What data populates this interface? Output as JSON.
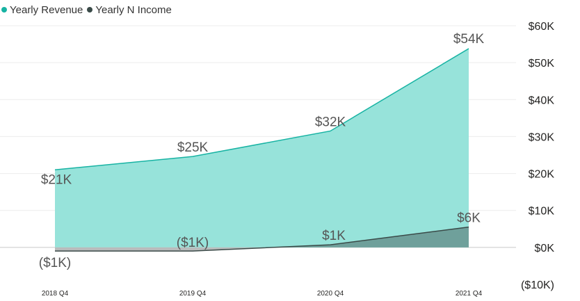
{
  "chart_data": {
    "type": "area",
    "categories": [
      "2018 Q4",
      "2019 Q4",
      "2020 Q4",
      "2021 Q4"
    ],
    "series": [
      {
        "name": "Yearly Revenue",
        "values": [
          21000,
          24600,
          31500,
          53800
        ],
        "labels": [
          "$21K",
          "$25K",
          "$32K",
          "$54K"
        ],
        "color": "#17b3a3",
        "fill": "#97e3da"
      },
      {
        "name": "Yearly N Income",
        "values": [
          -1000,
          -1000,
          700,
          5500
        ],
        "labels": [
          "($1K)",
          "($1K)",
          "$1K",
          "$6K"
        ],
        "color": "#3a4a48",
        "fill": "#6fa09b",
        "negative_fill": "#b9bcbc"
      }
    ],
    "ylim": [
      -10000,
      60000
    ],
    "yticks": [
      60000,
      50000,
      40000,
      30000,
      20000,
      10000,
      0,
      -10000
    ],
    "ytick_labels": [
      "$60K",
      "$50K",
      "$40K",
      "$30K",
      "$20K",
      "$10K",
      "$0K",
      "($10K)"
    ],
    "grid": true,
    "legend_position": "top-left"
  }
}
